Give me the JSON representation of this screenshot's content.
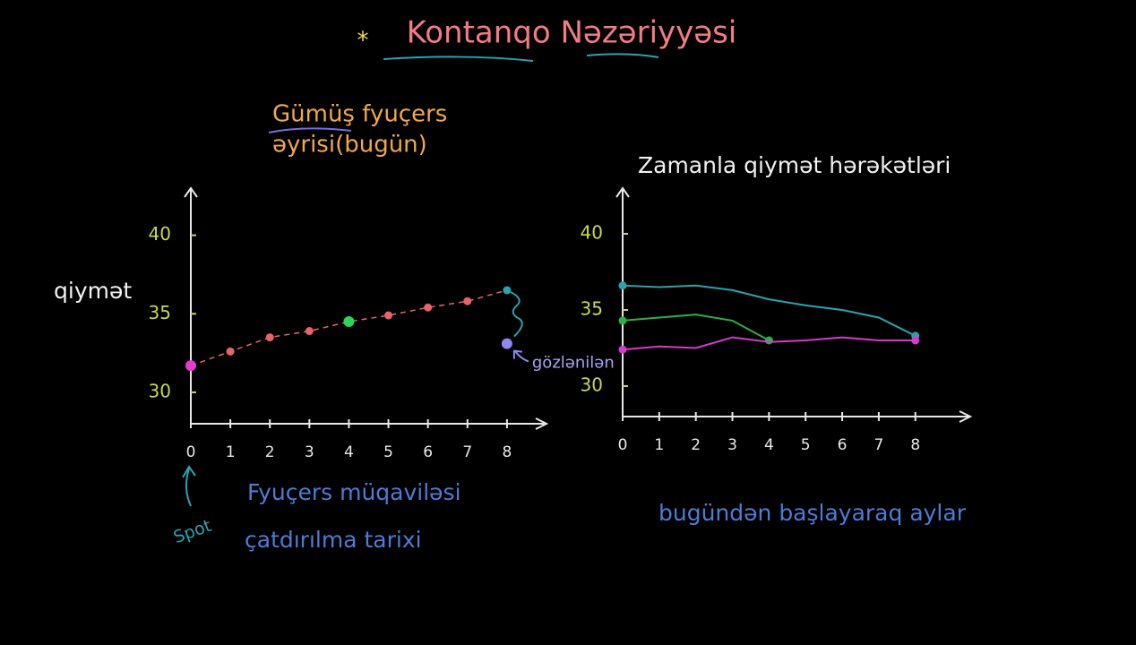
{
  "header": {
    "title": "Kontanqo Nəzəriyyəsi"
  },
  "chart_data": [
    {
      "type": "line",
      "title": [
        "Gümüş fyuçers",
        "əyrisi(bugün)"
      ],
      "y_label": "qiymət",
      "x_label": [
        "Fyuçers müqaviləsi",
        "çatdırılma tarixi"
      ],
      "spot_label": "Spot",
      "x": [
        0,
        1,
        2,
        3,
        4,
        5,
        6,
        7,
        8
      ],
      "series": [
        {
          "color": "#e8636b",
          "values": [
            31.7,
            32.6,
            33.5,
            33.9,
            34.5,
            34.9,
            35.4,
            35.8,
            36.5
          ]
        }
      ],
      "point_colors": [
        "#e83ad0",
        "#e8636b",
        "#e8636b",
        "#e8636b",
        "#2bd45a",
        "#e8636b",
        "#e8636b",
        "#e8636b",
        "#2aa3b0"
      ],
      "expected": {
        "x": 8,
        "value": 33.1,
        "label": "gözlənilən",
        "color": "#8d87ef"
      },
      "xlim": [
        0,
        9
      ],
      "ylim": [
        28,
        43
      ],
      "xticks": [
        0,
        1,
        2,
        3,
        4,
        5,
        6,
        7,
        8
      ],
      "yticks": [
        30,
        35,
        40
      ]
    },
    {
      "type": "line",
      "title": "Zamanla qiymət hərəkətləri",
      "x_label": "bugündən başlayaraq aylar",
      "x": [
        0,
        1,
        2,
        3,
        4,
        5,
        6,
        7,
        8
      ],
      "series": [
        {
          "color": "#2aa3b0",
          "values": [
            36.6,
            36.5,
            36.6,
            36.3,
            35.7,
            35.3,
            35.0,
            34.5,
            33.3
          ]
        },
        {
          "color": "#2bb04a",
          "values": [
            34.3,
            34.5,
            34.7,
            34.3,
            33.0,
            null,
            null,
            null,
            null
          ]
        },
        {
          "color": "#d63ad0",
          "values": [
            32.4,
            32.6,
            32.5,
            33.2,
            32.9,
            33.0,
            33.2,
            33.0,
            33.0
          ]
        }
      ],
      "xlim": [
        0,
        9.5
      ],
      "ylim": [
        28,
        43
      ],
      "xticks": [
        0,
        1,
        2,
        3,
        4,
        5,
        6,
        7,
        8
      ],
      "yticks": [
        30,
        35,
        40
      ]
    }
  ]
}
